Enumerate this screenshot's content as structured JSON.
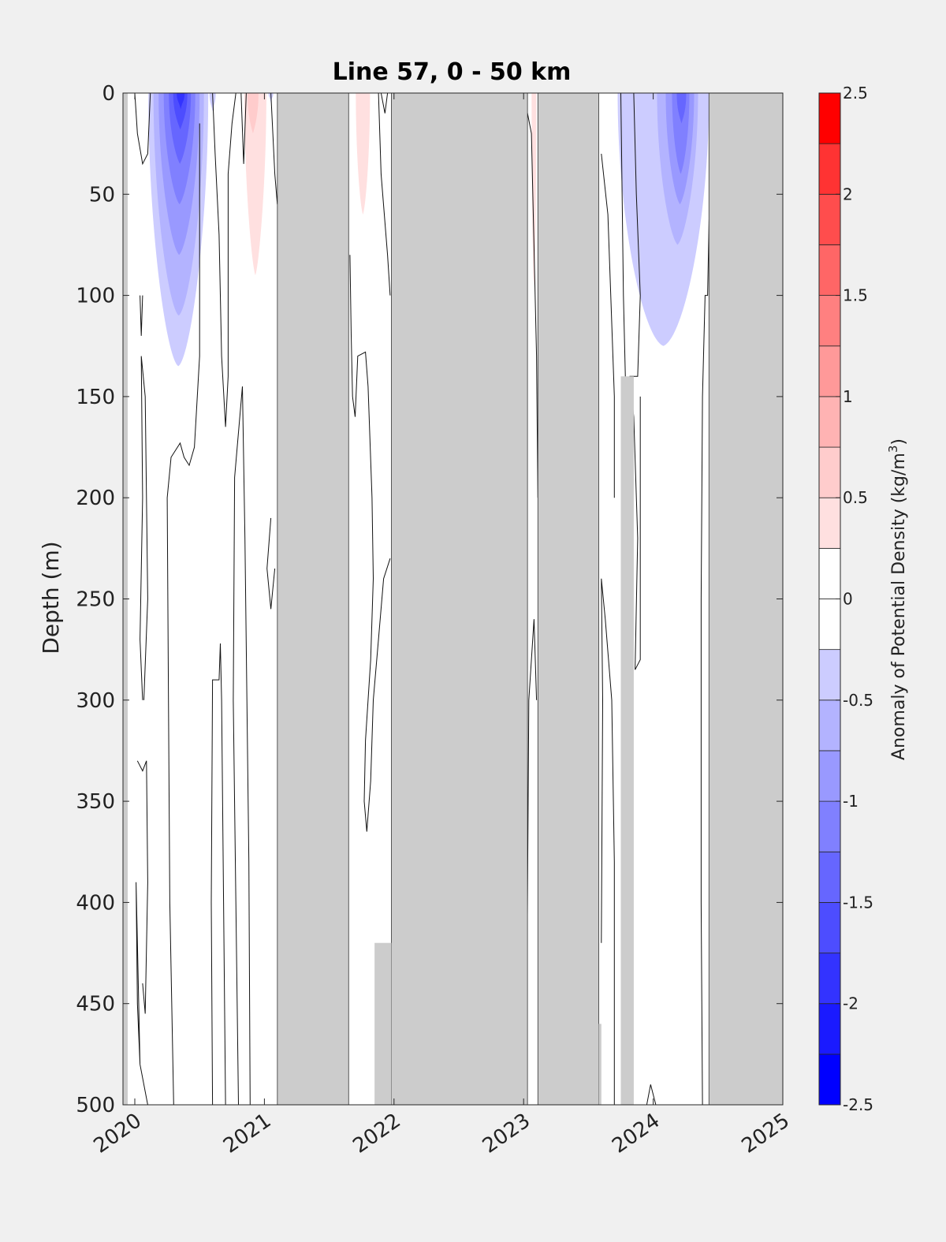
{
  "chart_data": {
    "type": "heatmap",
    "title": "Line 57, 0 - 50 km",
    "ylabel": "Depth (m)",
    "colorbar_label": "Anomaly of Potential Density (kg/m³)",
    "colorbar_label_main": "Anomaly of Potential Density (kg/m",
    "colorbar_label_sup": "3",
    "colorbar_label_close": ")",
    "xlim": [
      2020,
      2025
    ],
    "ylim": [
      0,
      500
    ],
    "y_reversed": true,
    "x_ticks": [
      2020,
      2021,
      2022,
      2023,
      2024,
      2025
    ],
    "x_tick_labels": [
      "2020",
      "2021",
      "2022",
      "2023",
      "2024",
      "2025"
    ],
    "y_ticks": [
      0,
      50,
      100,
      150,
      200,
      250,
      300,
      350,
      400,
      450,
      500
    ],
    "y_tick_labels": [
      "0",
      "50",
      "100",
      "150",
      "200",
      "250",
      "300",
      "350",
      "400",
      "450",
      "500"
    ],
    "colorbar": {
      "range": [
        -2.5,
        2.5
      ],
      "ticks": [
        -2.5,
        -2,
        -1.5,
        -1,
        -0.5,
        0,
        0.5,
        1,
        1.5,
        2,
        2.5
      ],
      "tick_labels": [
        "-2.5",
        "-2",
        "-1.5",
        "-1",
        "-0.5",
        "0",
        "0.5",
        "1",
        "1.5",
        "2",
        "2.5"
      ],
      "levels": [
        {
          "from": -2.5,
          "to": -2.25,
          "color": "#0000ff"
        },
        {
          "from": -2.25,
          "to": -2.0,
          "color": "#1a1aff"
        },
        {
          "from": -2.0,
          "to": -1.75,
          "color": "#3333ff"
        },
        {
          "from": -1.75,
          "to": -1.5,
          "color": "#4d4dff"
        },
        {
          "from": -1.5,
          "to": -1.25,
          "color": "#6666ff"
        },
        {
          "from": -1.25,
          "to": -1.0,
          "color": "#8080ff"
        },
        {
          "from": -1.0,
          "to": -0.75,
          "color": "#9999ff"
        },
        {
          "from": -0.75,
          "to": -0.5,
          "color": "#b3b3ff"
        },
        {
          "from": -0.5,
          "to": -0.25,
          "color": "#ccccff"
        },
        {
          "from": -0.25,
          "to": 0.0,
          "color": "#ffffff"
        },
        {
          "from": 0.0,
          "to": 0.25,
          "color": "#ffffff"
        },
        {
          "from": 0.25,
          "to": 0.5,
          "color": "#ffe0e0"
        },
        {
          "from": 0.5,
          "to": 0.75,
          "color": "#ffcccc"
        },
        {
          "from": 0.75,
          "to": 1.0,
          "color": "#ffb3b3"
        },
        {
          "from": 1.0,
          "to": 1.25,
          "color": "#ff9999"
        },
        {
          "from": 1.25,
          "to": 1.5,
          "color": "#ff8080"
        },
        {
          "from": 1.5,
          "to": 1.75,
          "color": "#ff6666"
        },
        {
          "from": 1.75,
          "to": 2.0,
          "color": "#ff4d4d"
        },
        {
          "from": 2.0,
          "to": 2.25,
          "color": "#ff3333"
        },
        {
          "from": 2.25,
          "to": 2.5,
          "color": "#ff0000"
        }
      ]
    },
    "no_data_color": "#cccccc",
    "no_data_periods": [
      {
        "start": 2021.1,
        "end": 2021.65
      },
      {
        "start": 2021.98,
        "end": 2023.03
      },
      {
        "start": 2023.11,
        "end": 2023.58
      },
      {
        "start": 2024.43,
        "end": 2025.0
      }
    ],
    "anomaly_features": [
      {
        "label": "negative anomaly",
        "t_center": 2020.36,
        "depth_max": 135,
        "min_value": -1.75
      },
      {
        "label": "positive anomaly",
        "t_center": 2020.93,
        "depth_max": 90,
        "max_value": 0.75
      },
      {
        "label": "positive anomaly",
        "t_center": 2021.76,
        "depth_max": 60,
        "max_value": 0.5
      },
      {
        "label": "negative anomaly",
        "t_center": 2024.2,
        "depth_max": 125,
        "min_value": -1.25
      }
    ]
  }
}
